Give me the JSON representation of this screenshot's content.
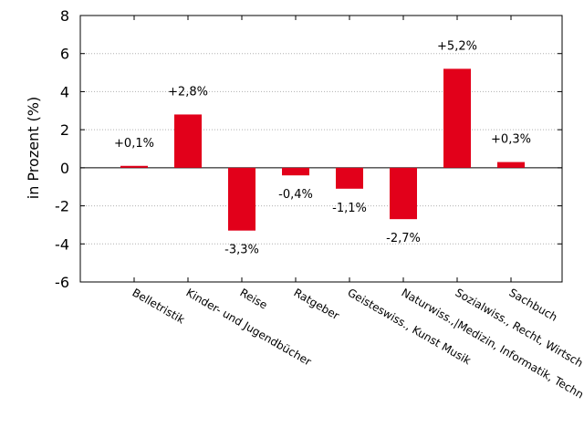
{
  "chart_data": {
    "type": "bar",
    "title": "",
    "xlabel": "",
    "ylabel": "in Prozent (%)",
    "ylim": [
      -6,
      8
    ],
    "yticks": [
      -6,
      -4,
      -2,
      0,
      2,
      4,
      6,
      8
    ],
    "grid": "horizontal-dotted",
    "bar_color": "#e2001a",
    "categories": [
      "Belletristik",
      "Kinder- und Jugendbücher",
      "Reise",
      "Ratgeber",
      "Geisteswiss., Kunst  Musik",
      "Naturwiss.,|Medizin, Informatik, Techn",
      "Sozialwiss., Recht, Wirtsch",
      "Sachbuch"
    ],
    "values": [
      0.1,
      2.8,
      -3.3,
      -0.4,
      -1.1,
      -2.7,
      5.2,
      0.3
    ],
    "data_labels": [
      "+0,1%",
      "+2,8%",
      "-3,3%",
      "-0,4%",
      "-1,1%",
      "-2,7%",
      "+5,2%",
      "+0,3%"
    ]
  }
}
